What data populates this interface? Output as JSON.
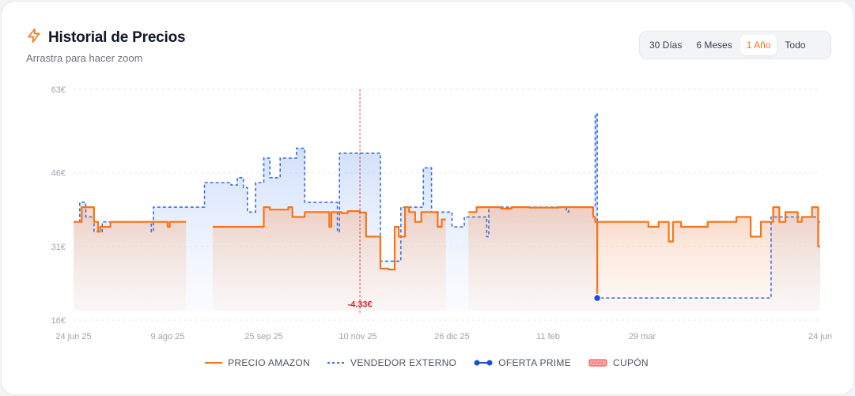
{
  "header": {
    "title": "Historial de Precios",
    "subtitle": "Arrastra para hacer zoom",
    "icon": "lightning-icon"
  },
  "range_buttons": [
    {
      "label": "30 Días",
      "active": false
    },
    {
      "label": "6 Meses",
      "active": false
    },
    {
      "label": "1 Año",
      "active": true
    },
    {
      "label": "Todo",
      "active": false
    }
  ],
  "legend": {
    "amazon": "PRECIO AMAZON",
    "external": "VENDEDOR EXTERNO",
    "prime": "OFERTA PRIME",
    "coupon": "CUPÓN"
  },
  "colors": {
    "amazon": "#f97316",
    "external": "#3b6fe0",
    "prime": "#1d4ed8",
    "coupon": "#ef4444",
    "annotation": "#dc2626",
    "grid": "#e5e7eb",
    "tick": "#9ca3af"
  },
  "chart_data": {
    "type": "line",
    "step": true,
    "grid": true,
    "ylim": [
      16,
      63
    ],
    "y_ticks": [
      {
        "value": 63,
        "label": "63€"
      },
      {
        "value": 46,
        "label": "46€"
      },
      {
        "value": 31,
        "label": "31€"
      },
      {
        "value": 16,
        "label": "16€"
      }
    ],
    "xlim": [
      "2025-06-24",
      "2026-06-24"
    ],
    "x_ticks": [
      {
        "date": "2025-06-24",
        "label": "24 jun 25"
      },
      {
        "date": "2025-08-09",
        "label": "9 ago 25"
      },
      {
        "date": "2025-09-25",
        "label": "25 sep 25"
      },
      {
        "date": "2025-11-10",
        "label": "10 nov 25"
      },
      {
        "date": "2025-12-26",
        "label": "26 dic 25"
      },
      {
        "date": "2026-02-11",
        "label": "11 feb"
      },
      {
        "date": "2026-03-29",
        "label": "29 mar"
      },
      {
        "date": "2026-06-24",
        "label": "24 jun"
      }
    ],
    "series": [
      {
        "name": "PRECIO AMAZON",
        "style": "solid",
        "points": [
          [
            "2025-06-24",
            36
          ],
          [
            "2025-06-28",
            39
          ],
          [
            "2025-07-04",
            36
          ],
          [
            "2025-07-06",
            34
          ],
          [
            "2025-07-07",
            35
          ],
          [
            "2025-07-12",
            36
          ],
          [
            "2025-08-09",
            35
          ],
          [
            "2025-08-10",
            36
          ],
          [
            "2025-08-18",
            null
          ],
          [
            "2025-08-31",
            35
          ],
          [
            "2025-09-25",
            39
          ],
          [
            "2025-09-28",
            38.5
          ],
          [
            "2025-10-07",
            39
          ],
          [
            "2025-10-09",
            37
          ],
          [
            "2025-10-15",
            38
          ],
          [
            "2025-10-27",
            35
          ],
          [
            "2025-10-28",
            38
          ],
          [
            "2025-11-02",
            37.8
          ],
          [
            "2025-11-05",
            38.2
          ],
          [
            "2025-11-11",
            37.9
          ],
          [
            "2025-11-14",
            33
          ],
          [
            "2025-11-21",
            26.5
          ],
          [
            "2025-11-25",
            26.3
          ],
          [
            "2025-11-28",
            35
          ],
          [
            "2025-11-30",
            33
          ],
          [
            "2025-12-03",
            39
          ],
          [
            "2025-12-05",
            38
          ],
          [
            "2025-12-08",
            36
          ],
          [
            "2025-12-11",
            38
          ],
          [
            "2025-12-19",
            35
          ],
          [
            "2025-12-21",
            36.5
          ],
          [
            "2025-12-23",
            null
          ],
          [
            "2026-01-03",
            38
          ],
          [
            "2026-01-07",
            39
          ],
          [
            "2026-01-19",
            38.7
          ],
          [
            "2026-01-24",
            39
          ],
          [
            "2026-02-02",
            38.9
          ],
          [
            "2026-02-16",
            39
          ],
          [
            "2026-03-05",
            37
          ],
          [
            "2026-03-06",
            36
          ],
          [
            "2026-03-07",
            20.5
          ],
          [
            "2026-03-07",
            36
          ],
          [
            "2026-03-27",
            36
          ],
          [
            "2026-04-01",
            35
          ],
          [
            "2026-04-06",
            36
          ],
          [
            "2026-04-11",
            32
          ],
          [
            "2026-04-13",
            36
          ],
          [
            "2026-04-17",
            35
          ],
          [
            "2026-04-30",
            36
          ],
          [
            "2026-05-14",
            37
          ],
          [
            "2026-05-21",
            33
          ],
          [
            "2026-05-26",
            36
          ],
          [
            "2026-06-01",
            39
          ],
          [
            "2026-06-04",
            36
          ],
          [
            "2026-06-07",
            38
          ],
          [
            "2026-06-13",
            36
          ],
          [
            "2026-06-15",
            37
          ],
          [
            "2026-06-20",
            39
          ],
          [
            "2026-06-23",
            31
          ]
        ]
      },
      {
        "name": "VENDEDOR EXTERNO",
        "style": "dashed",
        "points": [
          [
            "2025-06-24",
            36
          ],
          [
            "2025-06-27",
            40
          ],
          [
            "2025-06-30",
            37
          ],
          [
            "2025-07-04",
            34
          ],
          [
            "2025-07-08",
            36
          ],
          [
            "2025-08-01",
            34
          ],
          [
            "2025-08-02",
            39
          ],
          [
            "2025-08-27",
            44
          ],
          [
            "2025-09-09",
            43.5
          ],
          [
            "2025-09-12",
            45
          ],
          [
            "2025-09-15",
            43
          ],
          [
            "2025-09-17",
            38
          ],
          [
            "2025-09-21",
            44
          ],
          [
            "2025-09-25",
            49
          ],
          [
            "2025-09-28",
            45
          ],
          [
            "2025-10-03",
            49
          ],
          [
            "2025-10-11",
            51
          ],
          [
            "2025-10-15",
            40
          ],
          [
            "2025-10-31",
            34
          ],
          [
            "2025-11-01",
            50
          ],
          [
            "2025-11-21",
            28
          ],
          [
            "2025-11-28",
            28
          ],
          [
            "2025-12-01",
            39
          ],
          [
            "2025-12-08",
            39
          ],
          [
            "2025-12-12",
            47
          ],
          [
            "2025-12-16",
            38
          ],
          [
            "2025-12-26",
            35
          ],
          [
            "2026-01-01",
            37
          ],
          [
            "2026-01-12",
            33
          ],
          [
            "2026-01-13",
            39
          ],
          [
            "2026-02-01",
            39
          ],
          [
            "2026-02-20",
            38
          ],
          [
            "2026-02-21",
            39
          ],
          [
            "2026-03-06",
            58
          ],
          [
            "2026-03-07",
            20.5
          ],
          [
            "2026-05-29",
            20.5
          ],
          [
            "2026-05-31",
            37
          ],
          [
            "2026-06-23",
            36
          ]
        ]
      },
      {
        "name": "OFERTA PRIME",
        "style": "marker",
        "points": [
          [
            "2026-03-07",
            20.5
          ]
        ]
      }
    ],
    "annotations": [
      {
        "date": "2025-11-11",
        "label": "-4.33€",
        "y": 18
      }
    ]
  }
}
